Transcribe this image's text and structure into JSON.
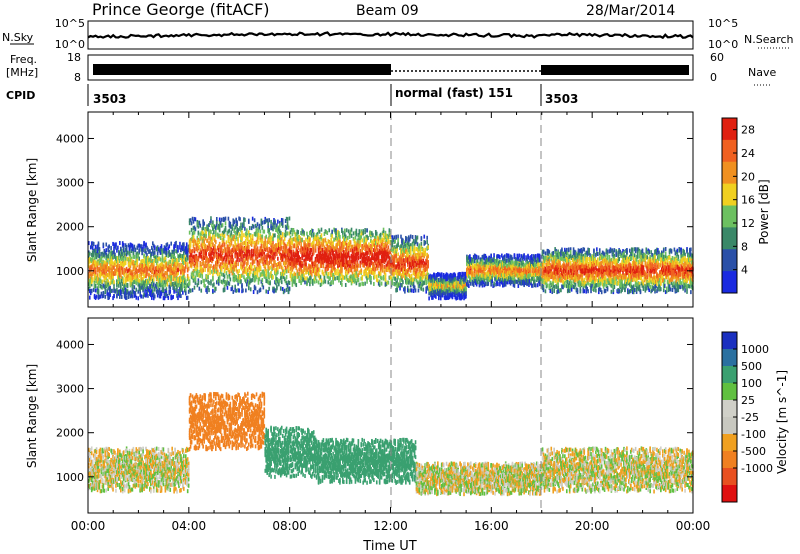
{
  "header": {
    "station": "Prince George (fitACF)",
    "beam": "Beam 09",
    "date": "28/Mar/2014"
  },
  "noise_panel": {
    "left_label": "N.Sky",
    "left_ticks": [
      "10^5",
      "10^0"
    ],
    "right_ticks": [
      "10^5",
      "10^0"
    ],
    "right_label": "N.Search"
  },
  "freq_panel": {
    "left_label_1": "Freq.",
    "left_label_2": "[MHz]",
    "left_ticks": [
      "18",
      "8"
    ],
    "right_ticks": [
      "60",
      "0"
    ],
    "right_label": "Nave"
  },
  "cpid_panel": {
    "label": "CPID",
    "segments": [
      {
        "start_hour": 0,
        "end_hour": 12,
        "label": "3503"
      },
      {
        "start_hour": 12,
        "end_hour": 18,
        "label": "normal (fast) 151"
      },
      {
        "start_hour": 18,
        "end_hour": 24,
        "label": "3503"
      }
    ]
  },
  "colors": {
    "power": [
      "#1a2ae0",
      "#2a50a8",
      "#3a8868",
      "#6cc060",
      "#f0d020",
      "#f09020",
      "#f06020",
      "#e02010"
    ],
    "velocity": [
      "#e01010",
      "#e85020",
      "#f08020",
      "#f0a020",
      "#c8c8c0",
      "#d0d0c8",
      "#60c040",
      "#3aa070",
      "#2a70a0",
      "#1a30c0"
    ]
  },
  "chart_data": [
    {
      "type": "heatmap",
      "panel": "power",
      "title": "",
      "xlabel": "Time UT",
      "ylabel": "Slant Range [km]",
      "xlim": [
        0,
        24
      ],
      "ylim": [
        180,
        4600
      ],
      "x_ticks": [
        "00:00",
        "04:00",
        "08:00",
        "12:00",
        "16:00",
        "20:00",
        "00:00"
      ],
      "y_ticks": [
        1000,
        2000,
        3000,
        4000
      ],
      "colorbar": {
        "label": "Power [dB]",
        "ticks": [
          4,
          8,
          12,
          16,
          20,
          24,
          28
        ],
        "range": [
          0,
          30
        ]
      },
      "dashed_markers_hour": [
        12,
        18
      ],
      "scatter_bands": [
        {
          "start_hour": 0.0,
          "end_hour": 4.0,
          "center_km": 1050,
          "width_km": 900,
          "dominant_db": 16
        },
        {
          "start_hour": 4.0,
          "end_hour": 8.0,
          "center_km": 1400,
          "width_km": 1200,
          "dominant_db": 20
        },
        {
          "start_hour": 8.0,
          "end_hour": 12.0,
          "center_km": 1350,
          "width_km": 900,
          "dominant_db": 24
        },
        {
          "start_hour": 12.0,
          "end_hour": 13.5,
          "center_km": 1200,
          "width_km": 900,
          "dominant_db": 20
        },
        {
          "start_hour": 13.5,
          "end_hour": 15.0,
          "center_km": 700,
          "width_km": 400,
          "dominant_db": 12
        },
        {
          "start_hour": 15.0,
          "end_hour": 18.0,
          "center_km": 1050,
          "width_km": 500,
          "dominant_db": 16
        },
        {
          "start_hour": 18.0,
          "end_hour": 24.0,
          "center_km": 1050,
          "width_km": 700,
          "dominant_db": 20
        }
      ]
    },
    {
      "type": "heatmap",
      "panel": "velocity",
      "title": "",
      "xlabel": "Time UT",
      "ylabel": "Slant Range [km]",
      "xlim": [
        0,
        24
      ],
      "ylim": [
        180,
        4600
      ],
      "x_ticks": [
        "00:00",
        "04:00",
        "08:00",
        "12:00",
        "16:00",
        "20:00",
        "00:00"
      ],
      "y_ticks": [
        1000,
        2000,
        3000,
        4000
      ],
      "colorbar": {
        "label": "Velocity [m s^-1]",
        "ticks": [
          "1000",
          "500",
          "100",
          "25",
          "-25",
          "-100",
          "-500",
          "-1000"
        ]
      },
      "dashed_markers_hour": [
        12,
        18
      ],
      "scatter_bands": [
        {
          "start_hour": 0.0,
          "end_hour": 4.0,
          "center_km": 1200,
          "width_km": 700,
          "dominant_mps": 0
        },
        {
          "start_hour": 4.0,
          "end_hour": 7.0,
          "center_km": 2300,
          "width_km": 900,
          "dominant_mps": -300
        },
        {
          "start_hour": 7.0,
          "end_hour": 9.0,
          "center_km": 1600,
          "width_km": 800,
          "dominant_mps": 200
        },
        {
          "start_hour": 9.0,
          "end_hour": 13.0,
          "center_km": 1400,
          "width_km": 700,
          "dominant_mps": 300
        },
        {
          "start_hour": 13.0,
          "end_hour": 18.0,
          "center_km": 1000,
          "width_km": 500,
          "dominant_mps": 0
        },
        {
          "start_hour": 18.0,
          "end_hour": 24.0,
          "center_km": 1200,
          "width_km": 700,
          "dominant_mps": 0
        }
      ]
    }
  ]
}
